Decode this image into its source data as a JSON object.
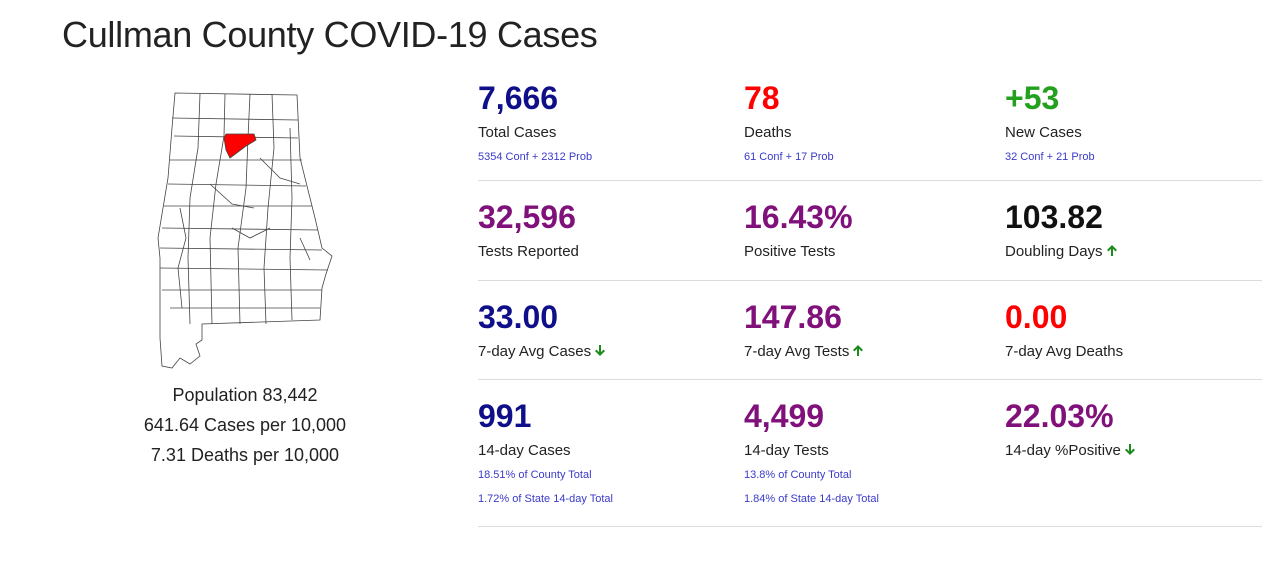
{
  "page": {
    "title": "Cullman County COVID-19 Cases"
  },
  "colors": {
    "navy": "#0f0f8a",
    "red": "#ff0000",
    "green": "#22a01e",
    "purple": "#80107a",
    "black": "#111111",
    "arrow_green": "#1c8a1c",
    "highlight_county": "#ff0000"
  },
  "county": {
    "population": "Population 83,442",
    "cases_per_10k": "641.64 Cases per 10,000",
    "deaths_per_10k": "7.31 Deaths per 10,000"
  },
  "stats": [
    [
      {
        "value": "7,666",
        "label": "Total Cases",
        "color": "navy",
        "subs": [
          "5354 Conf + 2312 Prob"
        ],
        "arrow": ""
      },
      {
        "value": "78",
        "label": "Deaths",
        "color": "red",
        "subs": [
          "61 Conf + 17 Prob"
        ],
        "arrow": ""
      },
      {
        "value": "+53",
        "label": "New Cases",
        "color": "green",
        "subs": [
          "32 Conf + 21 Prob"
        ],
        "arrow": ""
      }
    ],
    [
      {
        "value": "32,596",
        "label": "Tests Reported",
        "color": "purple",
        "subs": [],
        "arrow": ""
      },
      {
        "value": "16.43%",
        "label": "Positive Tests",
        "color": "purple",
        "subs": [],
        "arrow": ""
      },
      {
        "value": "103.82",
        "label": "Doubling Days",
        "color": "black",
        "subs": [],
        "arrow": "up"
      }
    ],
    [
      {
        "value": "33.00",
        "label": "7-day Avg Cases",
        "color": "navy",
        "subs": [],
        "arrow": "down"
      },
      {
        "value": "147.86",
        "label": "7-day Avg Tests",
        "color": "purple",
        "subs": [],
        "arrow": "up"
      },
      {
        "value": "0.00",
        "label": "7-day Avg Deaths",
        "color": "red",
        "subs": [],
        "arrow": ""
      }
    ],
    [
      {
        "value": "991",
        "label": "14-day Cases",
        "color": "navy",
        "subs": [
          "18.51% of County Total",
          "1.72% of State 14-day Total"
        ],
        "arrow": ""
      },
      {
        "value": "4,499",
        "label": "14-day Tests",
        "color": "purple",
        "subs": [
          "13.8% of County Total",
          "1.84% of State 14-day Total"
        ],
        "arrow": ""
      },
      {
        "value": "22.03%",
        "label": "14-day %Positive",
        "color": "purple",
        "subs": [],
        "arrow": "down"
      }
    ]
  ]
}
